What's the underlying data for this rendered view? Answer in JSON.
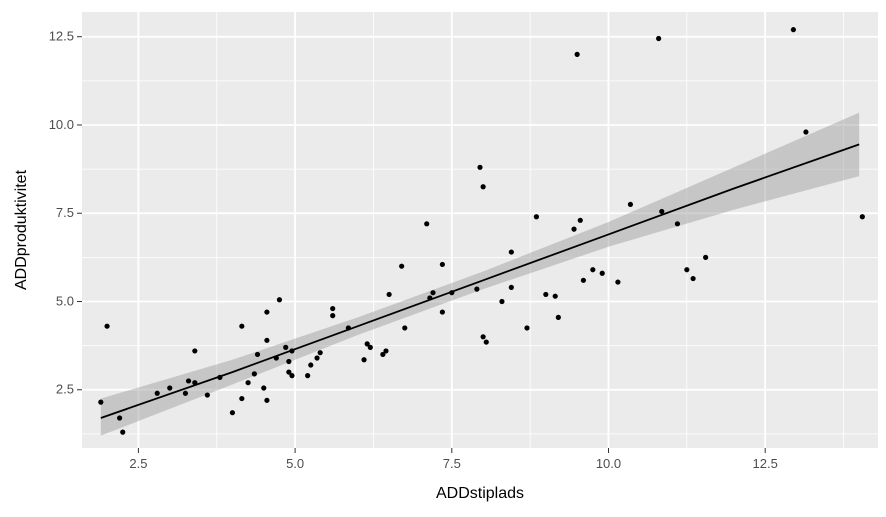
{
  "chart_data": {
    "type": "scatter",
    "xlabel": "ADDstiplads",
    "ylabel": "ADDproduktivitet",
    "xlim": [
      1.6,
      14.3
    ],
    "ylim": [
      0.85,
      13.2
    ],
    "x_ticks": [
      2.5,
      5.0,
      7.5,
      10.0,
      12.5
    ],
    "x_tick_labels": [
      "2.5",
      "5.0",
      "7.5",
      "10.0",
      "12.5"
    ],
    "y_ticks": [
      2.5,
      5.0,
      7.5,
      10.0,
      12.5
    ],
    "y_tick_labels": [
      "2.5",
      "5.0",
      "7.5",
      "10.0",
      "12.5"
    ],
    "grid": true,
    "panel_background": "#ebebeb",
    "grid_color": "#ffffff",
    "point_color": "#000000",
    "line_color": "#000000",
    "band_color": "#999999",
    "points": [
      [
        1.9,
        2.15
      ],
      [
        2.0,
        4.3
      ],
      [
        2.2,
        1.7
      ],
      [
        2.25,
        1.3
      ],
      [
        2.8,
        2.4
      ],
      [
        3.0,
        2.55
      ],
      [
        3.25,
        2.4
      ],
      [
        3.3,
        2.75
      ],
      [
        3.4,
        2.7
      ],
      [
        3.4,
        3.6
      ],
      [
        3.6,
        2.35
      ],
      [
        3.8,
        2.85
      ],
      [
        4.0,
        1.85
      ],
      [
        4.15,
        2.25
      ],
      [
        4.15,
        4.3
      ],
      [
        4.25,
        2.7
      ],
      [
        4.35,
        2.95
      ],
      [
        4.4,
        3.5
      ],
      [
        4.5,
        2.55
      ],
      [
        4.55,
        2.2
      ],
      [
        4.55,
        3.9
      ],
      [
        4.55,
        4.7
      ],
      [
        4.7,
        3.4
      ],
      [
        4.75,
        5.05
      ],
      [
        4.85,
        3.7
      ],
      [
        4.9,
        3.0
      ],
      [
        4.9,
        3.3
      ],
      [
        4.95,
        2.9
      ],
      [
        4.95,
        3.6
      ],
      [
        5.2,
        2.9
      ],
      [
        5.25,
        3.2
      ],
      [
        5.35,
        3.4
      ],
      [
        5.4,
        3.55
      ],
      [
        5.6,
        4.6
      ],
      [
        5.6,
        4.8
      ],
      [
        5.85,
        4.25
      ],
      [
        6.1,
        3.35
      ],
      [
        6.15,
        3.8
      ],
      [
        6.2,
        3.7
      ],
      [
        6.4,
        3.5
      ],
      [
        6.45,
        3.6
      ],
      [
        6.5,
        5.2
      ],
      [
        6.7,
        6.0
      ],
      [
        6.75,
        4.25
      ],
      [
        7.1,
        7.2
      ],
      [
        7.15,
        5.1
      ],
      [
        7.2,
        5.25
      ],
      [
        7.35,
        4.7
      ],
      [
        7.35,
        6.05
      ],
      [
        7.5,
        5.25
      ],
      [
        7.9,
        5.35
      ],
      [
        7.95,
        8.8
      ],
      [
        8.0,
        8.25
      ],
      [
        8.0,
        4.0
      ],
      [
        8.05,
        3.85
      ],
      [
        8.3,
        5.0
      ],
      [
        8.45,
        5.4
      ],
      [
        8.45,
        6.4
      ],
      [
        8.7,
        4.25
      ],
      [
        8.85,
        7.4
      ],
      [
        9.0,
        5.2
      ],
      [
        9.15,
        5.15
      ],
      [
        9.2,
        4.55
      ],
      [
        9.45,
        7.05
      ],
      [
        9.5,
        12.0
      ],
      [
        9.55,
        7.3
      ],
      [
        9.6,
        5.6
      ],
      [
        9.75,
        5.9
      ],
      [
        9.9,
        5.8
      ],
      [
        10.15,
        5.55
      ],
      [
        10.35,
        7.75
      ],
      [
        10.8,
        12.45
      ],
      [
        10.85,
        7.55
      ],
      [
        11.1,
        7.2
      ],
      [
        11.25,
        5.9
      ],
      [
        11.35,
        5.65
      ],
      [
        11.55,
        6.25
      ],
      [
        12.95,
        12.7
      ],
      [
        13.15,
        9.8
      ],
      [
        14.05,
        7.4
      ]
    ],
    "fit_line": {
      "x": [
        1.9,
        4.0,
        6.0,
        8.0,
        10.0,
        12.0,
        14.0
      ],
      "y": [
        1.7,
        3.0,
        4.3,
        5.6,
        6.9,
        8.2,
        9.45
      ]
    },
    "confidence_band": {
      "x": [
        1.9,
        4.0,
        6.0,
        8.0,
        10.0,
        12.0,
        14.0
      ],
      "lower": [
        1.2,
        2.65,
        4.05,
        5.35,
        6.55,
        7.6,
        8.55
      ],
      "upper": [
        2.25,
        3.35,
        4.55,
        5.85,
        7.25,
        8.8,
        10.35
      ]
    }
  }
}
